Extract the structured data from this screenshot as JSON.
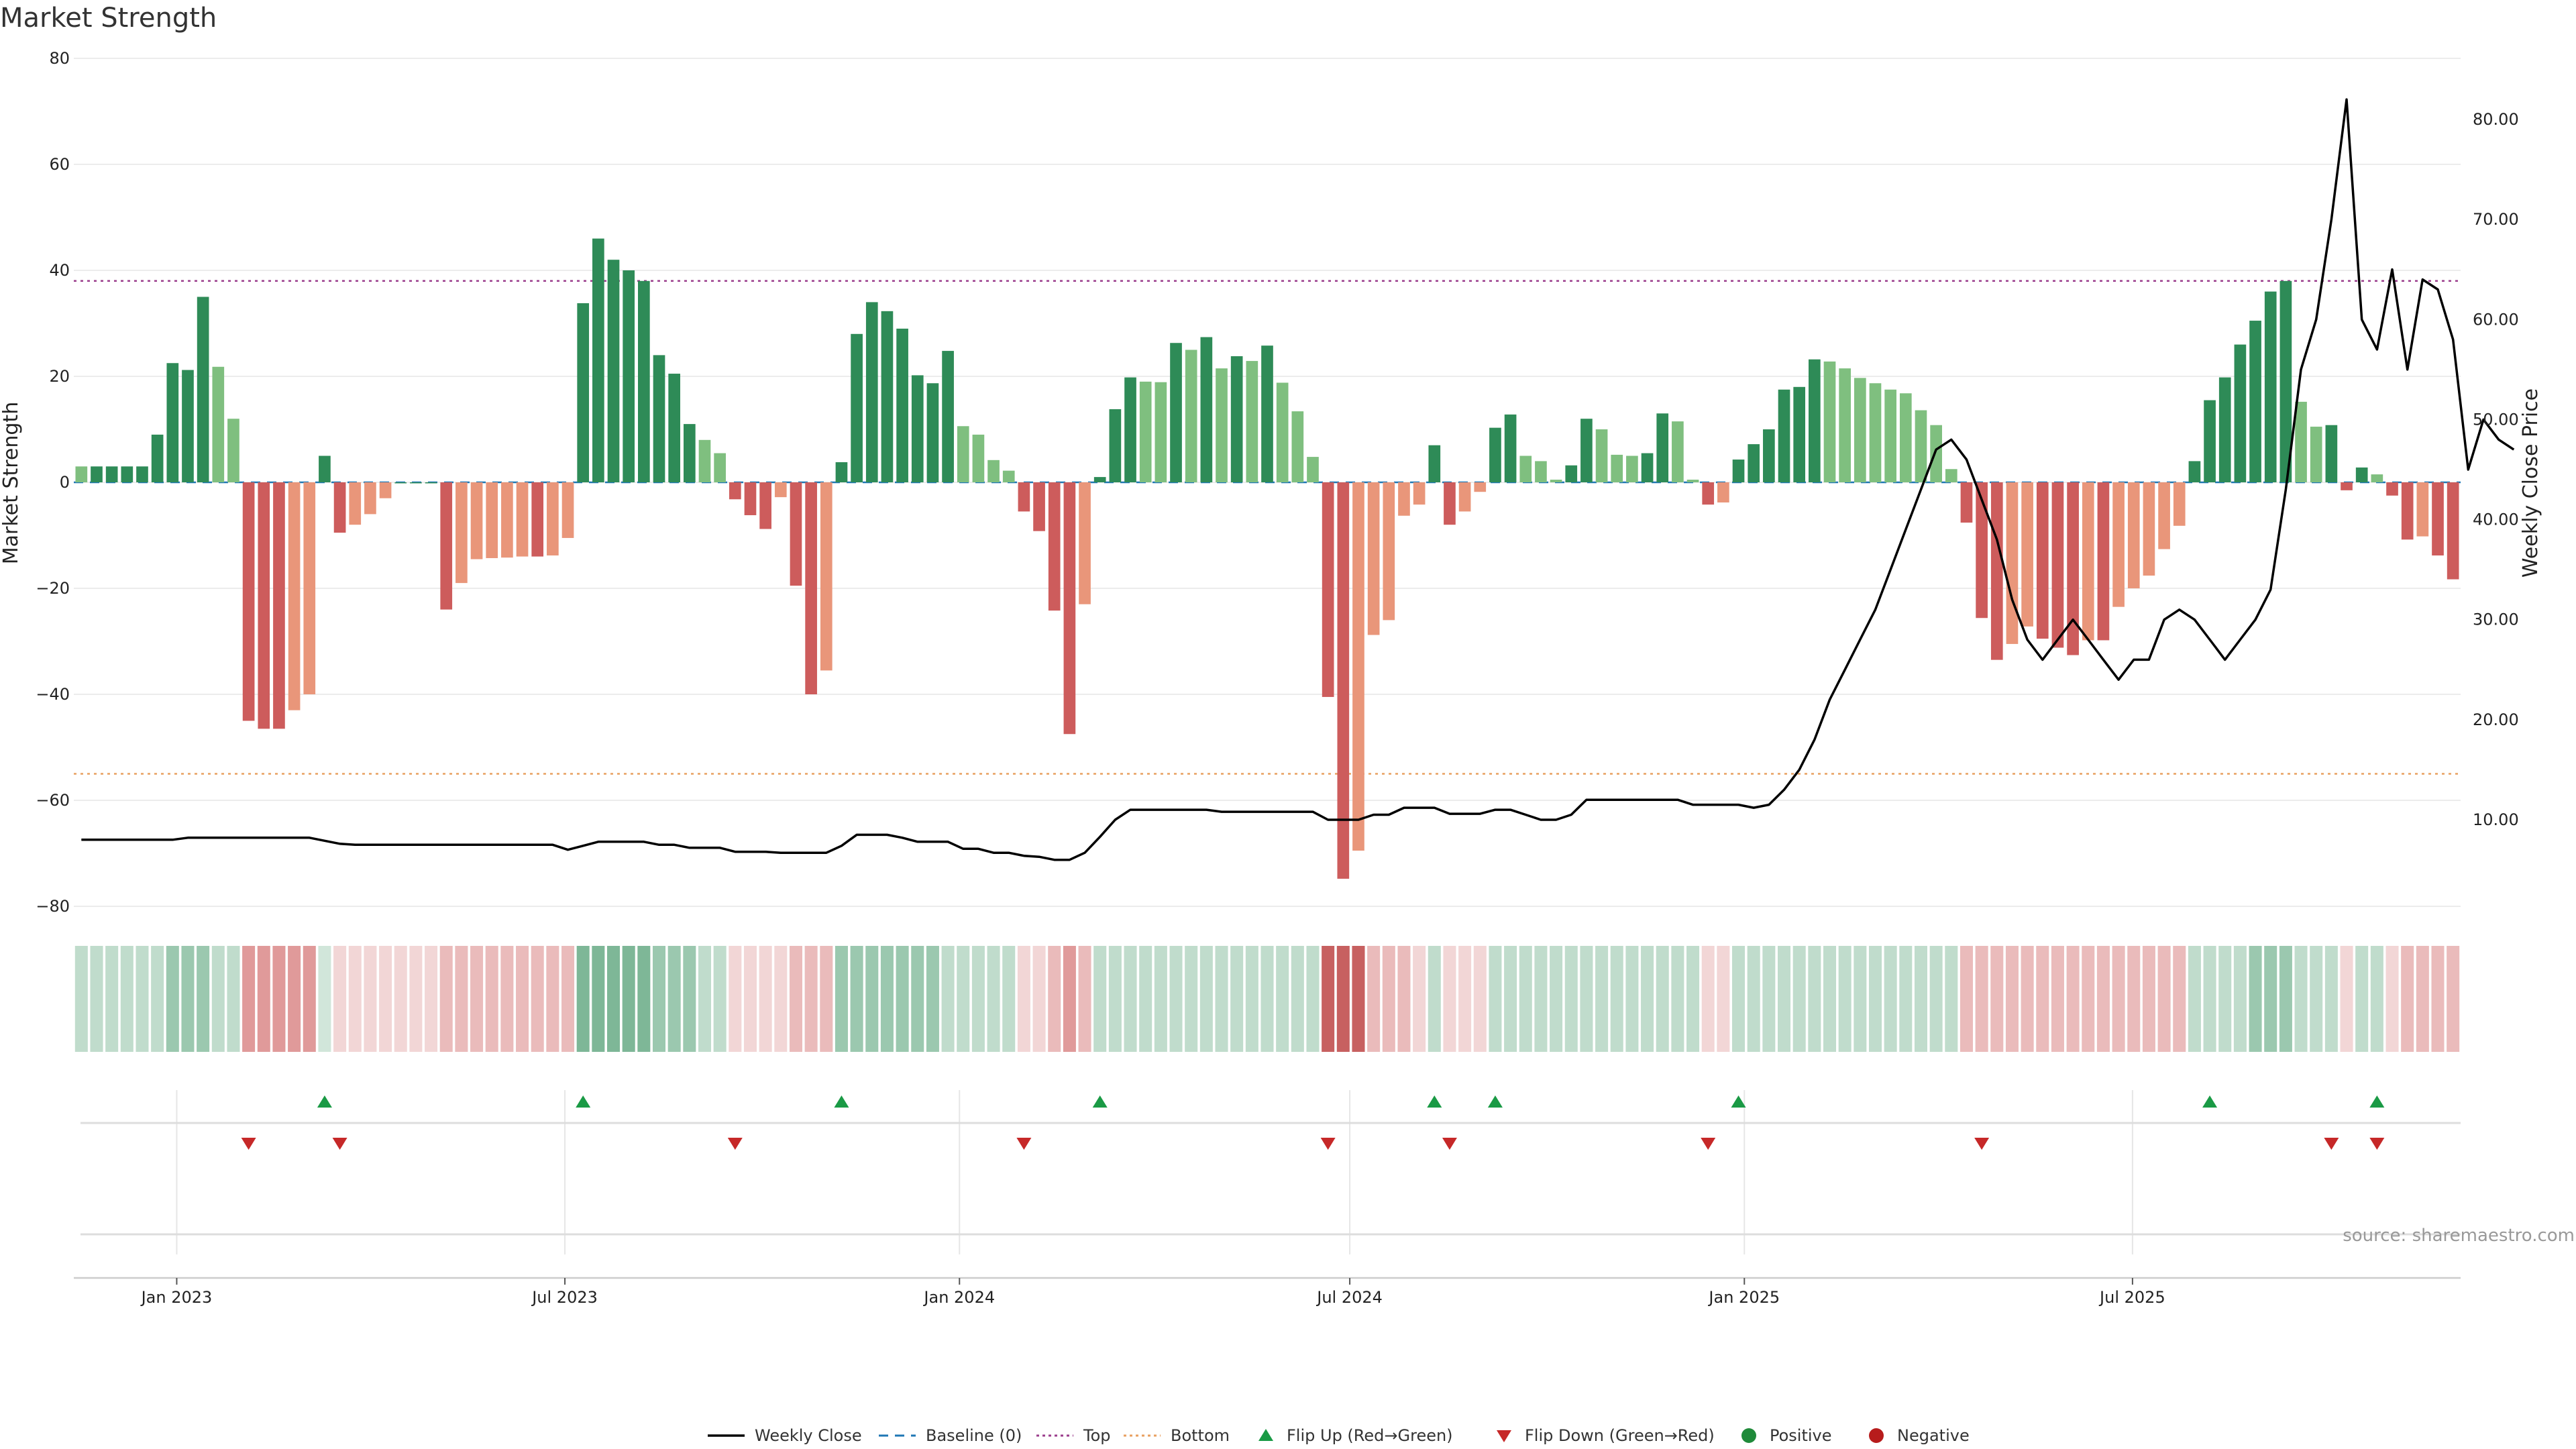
{
  "chart_data": {
    "type": "bar",
    "title": "Market Strength",
    "ylabel": "Market Strength",
    "y2label": "Weekly Close Price",
    "ylim": [
      -80,
      80
    ],
    "y2lim": [
      0,
      85
    ],
    "yticks": [
      "80",
      "60",
      "40",
      "20",
      "0",
      "−20",
      "−40",
      "−60",
      "−80"
    ],
    "y2ticks": [
      "80.00",
      "70.00",
      "60.00",
      "50.00",
      "40.00",
      "30.00",
      "20.00",
      "10.00"
    ],
    "xrange": [
      "2022-11-14",
      "2025-12-01"
    ],
    "xticks": [
      {
        "date": "2023-01-01",
        "label": "Jan 2023"
      },
      {
        "date": "2023-07-01",
        "label": "Jul 2023"
      },
      {
        "date": "2024-01-01",
        "label": "Jan 2024"
      },
      {
        "date": "2024-07-01",
        "label": "Jul 2024"
      },
      {
        "date": "2025-01-01",
        "label": "Jan 2025"
      },
      {
        "date": "2025-07-01",
        "label": "Jul 2025"
      }
    ],
    "top_level": 38,
    "bottom_level": -55,
    "strength": [
      3,
      3,
      3,
      3,
      3,
      9,
      22.5,
      21.2,
      35,
      21.8,
      12,
      -45,
      -46.5,
      -46.5,
      -43,
      -40,
      5,
      -9.5,
      -8,
      -6,
      -3,
      0,
      0,
      0,
      -24,
      -19,
      -14.5,
      -14.3,
      -14.2,
      -14,
      -14,
      -13.8,
      -10.5,
      33.8,
      46,
      42,
      40,
      38,
      24,
      20.5,
      11,
      8,
      5.5,
      -3.2,
      -6.2,
      -8.8,
      -2.8,
      -19.5,
      -40,
      -35.5,
      3.8,
      28,
      34,
      32.3,
      29,
      20.2,
      18.7,
      24.8,
      10.6,
      9,
      4.2,
      2.2,
      -5.5,
      -9.2,
      -24.2,
      -47.5,
      -23,
      1,
      13.8,
      19.8,
      19,
      18.9,
      26.3,
      25,
      27.4,
      21.5,
      23.8,
      22.9,
      25.8,
      18.8,
      13.4,
      4.8,
      -40.5,
      -74.8,
      -69.5,
      -28.8,
      -26,
      -6.3,
      -4.2,
      7,
      -8,
      -5.5,
      -1.8,
      10.3,
      12.8,
      5,
      4,
      0.5,
      3.2,
      12,
      10,
      5.2,
      5,
      5.5,
      13,
      11.5,
      0.5,
      -4.2,
      -3.8,
      4.3,
      7.2,
      10,
      17.5,
      18,
      23.2,
      22.8,
      21.5,
      19.7,
      18.7,
      17.5,
      16.8,
      13.6,
      10.8,
      2.5,
      -7.6,
      -25.6,
      -33.5,
      -30.5,
      -27.2,
      -29.5,
      -31.2,
      -32.6,
      -29.8,
      -29.8,
      -23.5,
      -20,
      -17.6,
      -12.6,
      -8.2,
      4,
      15.5,
      19.8,
      26,
      30.5,
      36,
      38,
      15.2,
      10.5,
      10.8,
      -1.5,
      2.8,
      1.5,
      -2.5,
      -10.8,
      -10.2,
      -13.8,
      -18.3
    ],
    "close": [
      8,
      8,
      8,
      8,
      8,
      8,
      8,
      8.2,
      8.2,
      8.2,
      8.2,
      8.2,
      8.2,
      8.2,
      8.2,
      8.2,
      7.9,
      7.6,
      7.5,
      7.5,
      7.5,
      7.5,
      7.5,
      7.5,
      7.5,
      7.5,
      7.5,
      7.5,
      7.5,
      7.5,
      7.5,
      7.5,
      7,
      7.4,
      7.8,
      7.8,
      7.8,
      7.8,
      7.5,
      7.5,
      7.2,
      7.2,
      7.2,
      6.8,
      6.8,
      6.8,
      6.7,
      6.7,
      6.7,
      6.7,
      7.4,
      8.5,
      8.5,
      8.5,
      8.2,
      7.8,
      7.8,
      7.8,
      7.1,
      7.1,
      6.7,
      6.7,
      6.4,
      6.3,
      6,
      6,
      6.7,
      8.3,
      10,
      11,
      11,
      11,
      11,
      11,
      11,
      10.8,
      10.8,
      10.8,
      10.8,
      10.8,
      10.8,
      10.8,
      10,
      10,
      10,
      10.5,
      10.5,
      11.2,
      11.2,
      11.2,
      10.6,
      10.6,
      10.6,
      11,
      11,
      10.5,
      10,
      10,
      10.5,
      12,
      12,
      12,
      12,
      12,
      12,
      12,
      11.5,
      11.5,
      11.5,
      11.5,
      11.2,
      11.5,
      13,
      15,
      18,
      22,
      25,
      28,
      31,
      35,
      39,
      43,
      47,
      48,
      46,
      42,
      38,
      32,
      28,
      26,
      28,
      30,
      28,
      26,
      24,
      26,
      26,
      30,
      31,
      30,
      28,
      26,
      28,
      30,
      33,
      43,
      55,
      60,
      70,
      82,
      60,
      57,
      65,
      55,
      64,
      63,
      58,
      45,
      50,
      48,
      47
    ],
    "regime": [
      1,
      1,
      1,
      1,
      1,
      1,
      2,
      2,
      2,
      1,
      1,
      -3,
      -3,
      -3,
      -3,
      -3,
      0,
      -1,
      -1,
      -1,
      -1,
      -1,
      -1,
      -1,
      -2,
      -2,
      -2,
      -2,
      -2,
      -2,
      -2,
      -2,
      -2,
      3,
      3,
      3,
      3,
      3,
      2,
      2,
      2,
      1,
      1,
      -1,
      -1,
      -1,
      -1,
      -2,
      -2,
      -2,
      2,
      2,
      2,
      2,
      2,
      2,
      2,
      1,
      1,
      1,
      1,
      1,
      -1,
      -1,
      -2,
      -3,
      -2,
      1,
      1,
      1,
      1,
      1,
      1,
      1,
      1,
      1,
      1,
      1,
      1,
      1,
      1,
      1,
      -4,
      -4,
      -4,
      -2,
      -2,
      -2,
      -1,
      1,
      -1,
      -1,
      -1,
      1,
      1,
      1,
      1,
      1,
      1,
      1,
      1,
      1,
      1,
      1,
      1,
      1,
      1,
      -1,
      -1,
      1,
      1,
      1,
      1,
      1,
      1,
      1,
      1,
      1,
      1,
      1,
      1,
      1,
      1,
      1,
      -2,
      -2,
      -2,
      -2,
      -2,
      -2,
      -2,
      -2,
      -2,
      -2,
      -2,
      -2,
      -2,
      -2,
      -2,
      1,
      1,
      1,
      1,
      2,
      2,
      2,
      1,
      1,
      1,
      -1,
      1,
      1,
      -1,
      -2,
      -2,
      -2,
      -2
    ],
    "flip_up_index": [
      16,
      33,
      50,
      67,
      89,
      93,
      109,
      140,
      151
    ],
    "flip_down_index": [
      11,
      17,
      43,
      62,
      82,
      90,
      107,
      125,
      148,
      151
    ],
    "legend": [
      {
        "label": "Weekly Close",
        "kind": "line",
        "color": "#000000"
      },
      {
        "label": "Baseline (0)",
        "kind": "dash",
        "color": "#1f77b4"
      },
      {
        "label": "Top",
        "kind": "dotted",
        "color": "#9b3d8c"
      },
      {
        "label": "Bottom",
        "kind": "dotted",
        "color": "#e9a060"
      },
      {
        "label": "Flip Up (Red→Green)",
        "kind": "tri-up",
        "color": "#1a9a45"
      },
      {
        "label": "Flip Down (Green→Red)",
        "kind": "tri-down",
        "color": "#c62828"
      },
      {
        "label": "Positive",
        "kind": "dot",
        "color": "#1f8a3a"
      },
      {
        "label": "Negative",
        "kind": "dot",
        "color": "#b71c1c"
      }
    ],
    "source_text": "source: sharemaestro.com",
    "colors": {
      "strong_pos": "#2e8b57",
      "weak_pos": "#7fbf7f",
      "strong_neg": "#cd5c5c",
      "weak_neg": "#e9967a",
      "line": "#000000"
    }
  }
}
